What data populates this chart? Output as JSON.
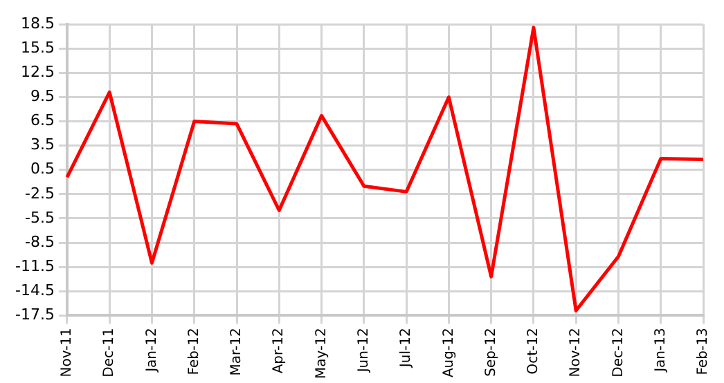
{
  "chart_data": {
    "type": "line",
    "categories": [
      "Nov-11",
      "Dec-11",
      "Jan-12",
      "Feb-12",
      "Mar-12",
      "Apr-12",
      "May-12",
      "Jun-12",
      "Jul-12",
      "Aug-12",
      "Sep-12",
      "Oct-12",
      "Nov-12",
      "Dec-12",
      "Jan-13",
      "Feb-13"
    ],
    "series": [
      {
        "color": "#ff0000",
        "values": [
          -0.4,
          10.1,
          -11.0,
          6.5,
          6.2,
          -4.5,
          7.2,
          -1.5,
          -2.2,
          9.5,
          -12.7,
          18.1,
          -16.9,
          -10.2,
          1.9,
          1.8
        ]
      }
    ],
    "ylim": [
      -17.5,
      18.5
    ],
    "yticks": [
      -17.5,
      -14.5,
      -11.5,
      -8.5,
      -5.5,
      -2.5,
      0.5,
      3.5,
      6.5,
      9.5,
      12.5,
      15.5,
      18.5
    ],
    "grid": true,
    "legend": false,
    "marker": "none",
    "line_style": "solid"
  }
}
